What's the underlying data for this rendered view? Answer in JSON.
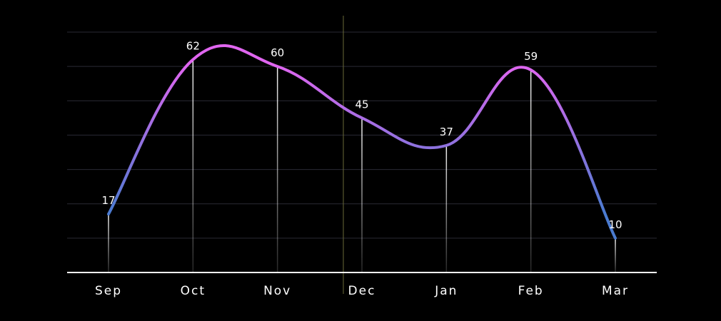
{
  "chart_data": {
    "type": "line",
    "categories": [
      "Sep",
      "Oct",
      "Nov",
      "Dec",
      "Jan",
      "Feb",
      "Mar"
    ],
    "series": [
      {
        "values": [
          17,
          62,
          60,
          45,
          37,
          59,
          10
        ]
      }
    ],
    "ylim": [
      0,
      70
    ],
    "grid": true,
    "title": "",
    "xlabel": "",
    "ylabel": "",
    "colors": {
      "background": "#000000",
      "grid": "#2a2a34",
      "axis": "#ffffff",
      "marker_line": "#ffffff",
      "cursor_line": "#6b6b3a",
      "gradient_start": "#e066f0",
      "gradient_end": "#4a7bd0"
    }
  }
}
